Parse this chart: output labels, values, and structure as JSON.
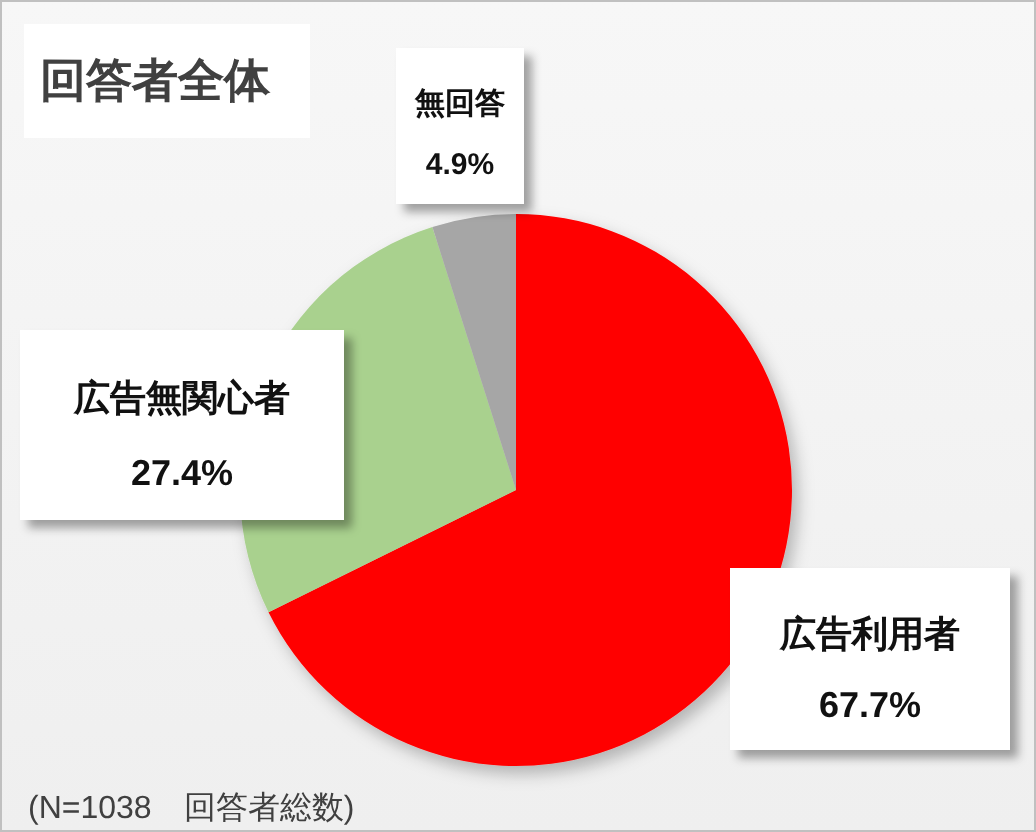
{
  "chart_data": {
    "type": "pie",
    "title": "回答者全体",
    "categories": [
      "広告利用者",
      "広告無関心者",
      "無回答"
    ],
    "values": [
      67.7,
      27.4,
      4.9
    ],
    "colors": [
      "#ff0000",
      "#a9d18e",
      "#a6a6a6"
    ],
    "value_labels": [
      "67.7%",
      "27.4%",
      "4.9%"
    ],
    "annotations": [
      "(N=1038　回答者総数)"
    ]
  }
}
